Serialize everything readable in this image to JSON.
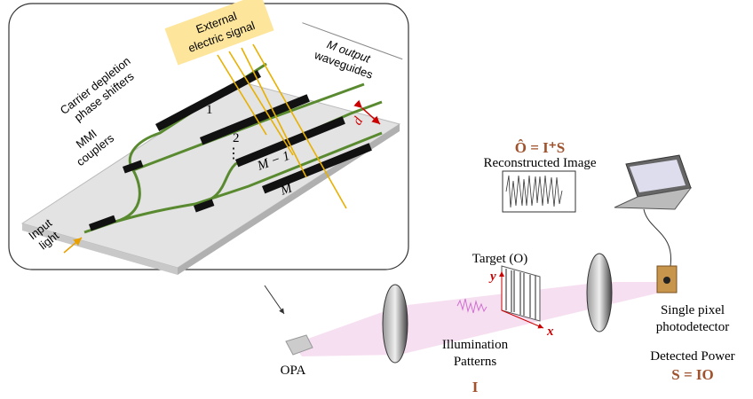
{
  "inset": {
    "signal_label": [
      "External",
      "electric signal"
    ],
    "phase_shifter_label": [
      "Carrier depletion",
      "phase shifters"
    ],
    "output_label": [
      "M output",
      "waveguides"
    ],
    "waveguide_labels": [
      "1",
      "2",
      "M − 1",
      "M"
    ],
    "spacing_label": "d",
    "coupler_label": [
      "MMI",
      "couplers"
    ],
    "input_label": [
      "Input",
      "light"
    ]
  },
  "setup": {
    "reconstruction_formula": "Ô = I⁺S",
    "reconstruction_label": "Reconstructed Image",
    "target_label": "Target (O)",
    "y_axis": "y",
    "x_axis": "x",
    "illumination_label": [
      "Illumination",
      "Patterns"
    ],
    "illumination_symbol": "I",
    "source_label": "OPA",
    "detector_label": [
      "Single pixel",
      "photodetector"
    ],
    "power_label": "Detected Power",
    "power_formula": "S = IO"
  }
}
